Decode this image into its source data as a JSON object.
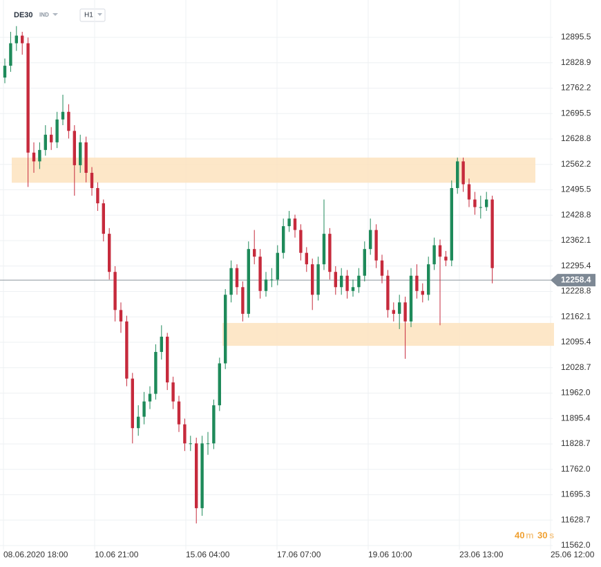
{
  "header": {
    "symbol": "DE30",
    "market": "IND",
    "timeframe": "H1"
  },
  "timer": {
    "parts": [
      "40",
      "m",
      "30",
      "s"
    ]
  },
  "chart_data": {
    "type": "candlestick",
    "up_color": "#1e8a5a",
    "down_color": "#c62a3c",
    "open": [
      12790,
      12821,
      12880,
      12900,
      12880,
      12593,
      12570,
      12600,
      12640,
      12620,
      12680,
      12700,
      12650,
      12560,
      12620,
      12540,
      12500,
      12460,
      12380,
      12280,
      12180,
      12150,
      12000,
      11870,
      11900,
      11940,
      11960,
      12070,
      12110,
      11990,
      11940,
      11880,
      11830,
      11830,
      11660,
      11830,
      11830,
      11930,
      12040,
      12220,
      12290,
      12240,
      12170,
      12340,
      12320,
      12230,
      12260,
      12260,
      12330,
      12400,
      12420,
      12390,
      12330,
      12300,
      12220,
      12300,
      12380,
      12280,
      12240,
      12270,
      12230,
      12240,
      12270,
      12340,
      12390,
      12310,
      12270,
      12180,
      12170,
      12200,
      12150,
      12270,
      12230,
      12220,
      12300,
      12350,
      12320,
      12310,
      12500,
      12570,
      12510,
      12470,
      12450,
      12450,
      12470
    ],
    "high": [
      12840,
      12910,
      12925,
      12910,
      12895,
      12620,
      12620,
      12665,
      12660,
      12700,
      12745,
      12720,
      12665,
      12640,
      12635,
      12555,
      12515,
      12470,
      12395,
      12295,
      12200,
      12165,
      12015,
      11930,
      11965,
      11980,
      12090,
      12140,
      12120,
      12005,
      11955,
      11895,
      11850,
      11845,
      11850,
      11860,
      11945,
      12055,
      12235,
      12310,
      12300,
      12255,
      12360,
      12390,
      12340,
      12280,
      12290,
      12350,
      12420,
      12440,
      12430,
      12405,
      12345,
      12315,
      12320,
      12470,
      12395,
      12295,
      12290,
      12285,
      12260,
      12290,
      12360,
      12420,
      12405,
      12325,
      12285,
      12200,
      12220,
      12215,
      12290,
      12300,
      12250,
      12320,
      12370,
      12365,
      12335,
      12520,
      12580,
      12580,
      12525,
      12490,
      12480,
      12490,
      12480
    ],
    "low": [
      12775,
      12805,
      12860,
      12850,
      12503,
      12540,
      12550,
      12585,
      12600,
      12605,
      12665,
      12630,
      12480,
      12540,
      12515,
      12480,
      12440,
      12360,
      12260,
      12150,
      12120,
      11980,
      11830,
      11850,
      11880,
      11920,
      11945,
      12050,
      11970,
      11920,
      11860,
      11810,
      11810,
      11620,
      11640,
      11800,
      11815,
      11915,
      12025,
      12200,
      12220,
      12150,
      12160,
      12300,
      12210,
      12215,
      12240,
      12245,
      12315,
      12385,
      12370,
      12310,
      12280,
      12180,
      12205,
      12285,
      12260,
      12220,
      12220,
      12210,
      12215,
      12225,
      12255,
      12325,
      12290,
      12250,
      12160,
      12150,
      12130,
      12052,
      12135,
      12210,
      12200,
      12205,
      12285,
      12140,
      12295,
      12295,
      12485,
      12490,
      12450,
      12430,
      12420,
      12440,
      12250
    ],
    "close": [
      12821,
      12880,
      12900,
      12880,
      12593,
      12570,
      12600,
      12640,
      12620,
      12680,
      12700,
      12650,
      12560,
      12620,
      12540,
      12500,
      12460,
      12380,
      12280,
      12180,
      12150,
      12000,
      11870,
      11900,
      11940,
      11960,
      12070,
      12110,
      11990,
      11940,
      11880,
      11830,
      11830,
      11660,
      11830,
      11830,
      11930,
      12040,
      12220,
      12290,
      12240,
      12170,
      12340,
      12320,
      12230,
      12260,
      12260,
      12330,
      12400,
      12420,
      12390,
      12330,
      12300,
      12220,
      12300,
      12380,
      12280,
      12240,
      12270,
      12230,
      12240,
      12270,
      12340,
      12390,
      12310,
      12270,
      12180,
      12170,
      12200,
      12150,
      12270,
      12230,
      12220,
      12300,
      12350,
      12320,
      12310,
      12500,
      12570,
      12510,
      12470,
      12450,
      12450,
      12470,
      12290
    ],
    "x_labels": [
      "08.06.2020 18:00",
      "10.06 21:00",
      "15.06 04:00",
      "17.06 07:00",
      "19.06 10:00",
      "23.06 13:00",
      "25.06 12:00"
    ],
    "ylim": [
      11551,
      12993.5
    ],
    "yticks": [
      12895.5,
      12828.9,
      12762.2,
      12695.5,
      12628.8,
      12562.2,
      12495.5,
      12428.8,
      12362.1,
      12295.4,
      12228.8,
      12162.1,
      12095.4,
      12028.7,
      {
        "value": 11962,
        "label": "11962.0"
      },
      11895.4,
      11828.7,
      {
        "value": 11762,
        "label": "11762.0"
      },
      11695.3,
      11628.7,
      {
        "value": 11562,
        "label": "11562.0"
      }
    ],
    "grid": true,
    "zones": [
      {
        "top": 12580,
        "bottom": 12514,
        "color": "#fde3be"
      },
      {
        "top": 12146,
        "bottom": 12086,
        "color": "#fde3be"
      }
    ],
    "current_price": 12258.4
  }
}
